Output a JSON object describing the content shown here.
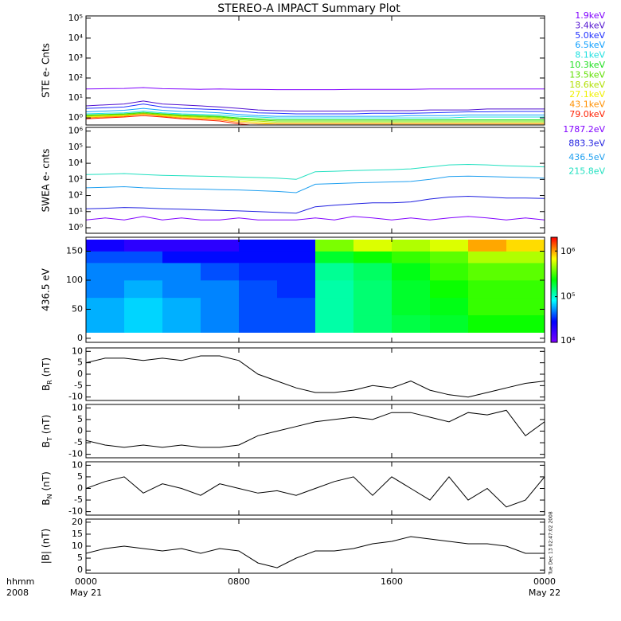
{
  "title": "STEREO-A IMPACT Summary Plot",
  "timestamp": "Tue Dec 13 02:47:02 2008",
  "chart_data": [
    {
      "type": "line",
      "log": true,
      "ylabel": "STE e- Cnts",
      "legend": "right-outside",
      "ylim": [
        0.44,
        130000
      ],
      "yticks": [
        {
          "value": 1,
          "label": "10⁰"
        },
        {
          "value": 10,
          "label": "10¹"
        },
        {
          "value": 100,
          "label": "10²"
        },
        {
          "value": 1000,
          "label": "10³"
        },
        {
          "value": 10000,
          "label": "10⁴"
        },
        {
          "value": 100000,
          "label": "10⁵"
        }
      ],
      "x": [
        0,
        1,
        2,
        3,
        4,
        5,
        6,
        7,
        8,
        9,
        10,
        11,
        12,
        13,
        14,
        15,
        16,
        17,
        18,
        19,
        20,
        21,
        22,
        23,
        24
      ],
      "series": [
        {
          "name": "1.9keV",
          "color": "#8000ff",
          "values": [
            28,
            29,
            30,
            33,
            29,
            28,
            27,
            28,
            27,
            27,
            26,
            26,
            26,
            26,
            27,
            27,
            27,
            27,
            28,
            28,
            28,
            28,
            28,
            28,
            28
          ]
        },
        {
          "name": "3.4keV",
          "color": "#5010d0",
          "values": [
            4,
            4.5,
            5,
            7,
            5,
            4.5,
            4,
            3.5,
            3,
            2.5,
            2.3,
            2.2,
            2.2,
            2.2,
            2.2,
            2.3,
            2.3,
            2.3,
            2.5,
            2.5,
            2.5,
            2.8,
            2.8,
            2.8,
            2.8
          ]
        },
        {
          "name": "5.0keV",
          "color": "#2030ff",
          "values": [
            3,
            3.2,
            3.5,
            5,
            3.5,
            3,
            2.8,
            2.6,
            2.2,
            1.8,
            1.7,
            1.6,
            1.6,
            1.6,
            1.6,
            1.7,
            1.7,
            1.7,
            1.8,
            1.9,
            2,
            2,
            2.1,
            2.1,
            2.1
          ]
        },
        {
          "name": "6.5keV",
          "color": "#10a0ff",
          "values": [
            2,
            2.2,
            2.4,
            3,
            2.4,
            2.1,
            2,
            1.8,
            1.5,
            1.3,
            1.2,
            1.2,
            1.2,
            1.2,
            1.2,
            1.2,
            1.2,
            1.3,
            1.3,
            1.3,
            1.4,
            1.4,
            1.4,
            1.4,
            1.4
          ]
        },
        {
          "name": "8.1keV",
          "color": "#20e0e0",
          "values": [
            1.6,
            1.7,
            1.8,
            2.2,
            1.8,
            1.6,
            1.5,
            1.4,
            1.2,
            1.1,
            1,
            1,
            1,
            1,
            1,
            1,
            1,
            1,
            1,
            1,
            1.1,
            1.1,
            1.1,
            1.1,
            1.1
          ]
        },
        {
          "name": "10.3keV",
          "color": "#20e020",
          "values": [
            1.4,
            1.5,
            1.6,
            1.9,
            1.6,
            1.4,
            1.3,
            1.2,
            1,
            0.9,
            0.8,
            0.8,
            0.8,
            0.8,
            0.8,
            0.8,
            0.8,
            0.8,
            0.8,
            0.8,
            0.8,
            0.8,
            0.8,
            0.8,
            0.8
          ]
        },
        {
          "name": "13.5keV",
          "color": "#60e000",
          "values": [
            1.3,
            1.4,
            1.5,
            1.7,
            1.5,
            1.3,
            1.2,
            1.1,
            0.9,
            0.8,
            0.7,
            0.7,
            0.7,
            0.7,
            0.7,
            0.7,
            0.7,
            0.7,
            0.7,
            0.7,
            0.7,
            0.7,
            0.7,
            0.7,
            0.7
          ]
        },
        {
          "name": "18.6keV",
          "color": "#b0e000",
          "values": [
            1.2,
            1.3,
            1.4,
            1.6,
            1.4,
            1.2,
            1.1,
            1,
            0.8,
            0.7,
            0.6,
            0.6,
            0.6,
            0.6,
            0.6,
            0.6,
            0.6,
            0.6,
            0.6,
            0.6,
            0.6,
            0.6,
            0.6,
            0.6,
            0.6
          ]
        },
        {
          "name": "27.1keV",
          "color": "#f0f000",
          "values": [
            1.1,
            1.2,
            1.3,
            1.5,
            1.3,
            1.1,
            1,
            0.9,
            0.7,
            0.6,
            0.5,
            0.5,
            0.5,
            0.5,
            0.5,
            0.5,
            0.5,
            0.5,
            0.5,
            0.5,
            0.5,
            0.5,
            0.5,
            0.5,
            0.5
          ]
        },
        {
          "name": "43.1keV",
          "color": "#ff9000",
          "values": [
            1,
            1.1,
            1.2,
            1.6,
            1.2,
            1,
            0.9,
            0.8,
            0.6,
            0.5,
            0.5,
            0.5,
            0.5,
            0.5,
            0.5,
            0.5,
            0.5,
            0.5,
            0.5,
            0.5,
            0.5,
            0.5,
            0.5,
            0.5,
            0.5
          ]
        },
        {
          "name": "79.0keV",
          "color": "#ff2000",
          "values": [
            0.9,
            1,
            1.1,
            1.3,
            1.1,
            0.9,
            0.8,
            0.7,
            0.5,
            0.4,
            0.4,
            0.4,
            0.4,
            0.4,
            0.4,
            0.4,
            0.4,
            0.4,
            0.4,
            0.4,
            0.4,
            0.4,
            0.4,
            0.4,
            0.4
          ]
        }
      ]
    },
    {
      "type": "line",
      "log": true,
      "ylabel": "SWEA e- cnts",
      "legend": "right-outside",
      "ylim": [
        0.45,
        1700000
      ],
      "yticks": [
        {
          "value": 1,
          "label": "10⁰"
        },
        {
          "value": 10,
          "label": "10¹"
        },
        {
          "value": 100,
          "label": "10²"
        },
        {
          "value": 1000,
          "label": "10³"
        },
        {
          "value": 10000,
          "label": "10⁴"
        },
        {
          "value": 100000,
          "label": "10⁵"
        },
        {
          "value": 1000000,
          "label": "10⁶"
        }
      ],
      "x": [
        0,
        1,
        2,
        3,
        4,
        5,
        6,
        7,
        8,
        9,
        10,
        11,
        12,
        13,
        14,
        15,
        16,
        17,
        18,
        19,
        20,
        21,
        22,
        23,
        24
      ],
      "series": [
        {
          "name": "1787.2eV",
          "color": "#8000ff",
          "values": [
            3,
            4,
            3,
            5,
            3,
            4,
            3,
            3,
            4,
            3,
            3,
            3,
            4,
            3,
            5,
            4,
            3,
            4,
            3,
            4,
            5,
            4,
            3,
            4,
            3
          ]
        },
        {
          "name": "883.3eV",
          "color": "#2020e0",
          "values": [
            15,
            16,
            18,
            17,
            15,
            14,
            13,
            12,
            11,
            10,
            9,
            8,
            20,
            25,
            30,
            35,
            35,
            40,
            60,
            80,
            90,
            80,
            70,
            70,
            65
          ]
        },
        {
          "name": "436.5eV",
          "color": "#20a0f0",
          "values": [
            300,
            320,
            350,
            300,
            280,
            260,
            250,
            230,
            220,
            200,
            180,
            150,
            500,
            550,
            600,
            650,
            700,
            750,
            1000,
            1500,
            1600,
            1500,
            1400,
            1300,
            1200
          ]
        },
        {
          "name": "215.8eV",
          "color": "#20e0c0",
          "values": [
            2000,
            2100,
            2300,
            2000,
            1800,
            1700,
            1600,
            1500,
            1400,
            1300,
            1200,
            1000,
            3000,
            3200,
            3500,
            3800,
            4000,
            4500,
            6000,
            8000,
            8500,
            8000,
            7000,
            6500,
            6000
          ]
        }
      ]
    },
    {
      "type": "heatmap",
      "ylabel": "436.5 eV",
      "ylim": [
        -7,
        174
      ],
      "yticks": [
        0,
        50,
        100,
        150
      ],
      "x_bins": [
        0,
        2,
        4,
        6,
        8,
        10,
        12,
        14,
        16,
        18,
        20,
        22,
        24
      ],
      "y_bins": [
        10,
        40,
        70,
        100,
        130,
        150,
        170
      ],
      "values": [
        [
          60000,
          70000,
          60000,
          50000,
          40000,
          40000,
          120000,
          150000,
          180000,
          200000,
          250000,
          250000
        ],
        [
          60000,
          70000,
          60000,
          50000,
          40000,
          40000,
          120000,
          150000,
          200000,
          220000,
          300000,
          300000
        ],
        [
          50000,
          60000,
          50000,
          50000,
          40000,
          35000,
          120000,
          150000,
          200000,
          250000,
          300000,
          300000
        ],
        [
          50000,
          50000,
          50000,
          40000,
          35000,
          35000,
          130000,
          160000,
          220000,
          300000,
          350000,
          350000
        ],
        [
          40000,
          40000,
          30000,
          30000,
          30000,
          30000,
          200000,
          250000,
          300000,
          350000,
          500000,
          500000
        ],
        [
          25000,
          20000,
          20000,
          20000,
          30000,
          30000,
          400000,
          600000,
          500000,
          600000,
          1000000,
          800000
        ]
      ],
      "zlim": [
        10000,
        2000000
      ],
      "zticks": [
        {
          "value": 10000,
          "label": "10⁴"
        },
        {
          "value": 100000,
          "label": "10⁵"
        },
        {
          "value": 1000000,
          "label": "10⁶"
        }
      ],
      "colormap": [
        "#8000ff",
        "#0000ff",
        "#00ffff",
        "#00ff00",
        "#ffff00",
        "#ff0000"
      ]
    },
    {
      "type": "line",
      "ylabel": {
        "text": "B",
        "sub": "R",
        "unit": "(nT)"
      },
      "ylim": [
        -11.5,
        11.5
      ],
      "yticks": [
        10,
        5,
        0,
        -5,
        -10
      ],
      "x": [
        0,
        1,
        2,
        3,
        4,
        5,
        6,
        7,
        8,
        9,
        10,
        11,
        12,
        13,
        14,
        15,
        16,
        17,
        18,
        19,
        20,
        21,
        22,
        23,
        24
      ],
      "series": [
        {
          "color": "#000000",
          "values": [
            5,
            7,
            7,
            6,
            7,
            6,
            8,
            8,
            6,
            0,
            -3,
            -6,
            -8,
            -8,
            -7,
            -5,
            -6,
            -3,
            -7,
            -9,
            -10,
            -8,
            -6,
            -4,
            -3
          ]
        }
      ]
    },
    {
      "type": "line",
      "ylabel": {
        "text": "B",
        "sub": "T",
        "unit": "(nT)"
      },
      "ylim": [
        -11.5,
        11.5
      ],
      "yticks": [
        10,
        5,
        0,
        -5,
        -10
      ],
      "x": [
        0,
        1,
        2,
        3,
        4,
        5,
        6,
        7,
        8,
        9,
        10,
        11,
        12,
        13,
        14,
        15,
        16,
        17,
        18,
        19,
        20,
        21,
        22,
        23,
        24
      ],
      "series": [
        {
          "color": "#000000",
          "values": [
            -4,
            -6,
            -7,
            -6,
            -7,
            -6,
            -7,
            -7,
            -6,
            -2,
            0,
            2,
            4,
            5,
            6,
            5,
            8,
            8,
            6,
            4,
            8,
            7,
            9,
            -2,
            4
          ]
        }
      ]
    },
    {
      "type": "line",
      "ylabel": {
        "text": "B",
        "sub": "N",
        "unit": "(nT)"
      },
      "ylim": [
        -11.5,
        11.5
      ],
      "yticks": [
        10,
        5,
        0,
        -5,
        -10
      ],
      "x": [
        0,
        1,
        2,
        3,
        4,
        5,
        6,
        7,
        8,
        9,
        10,
        11,
        12,
        13,
        14,
        15,
        16,
        17,
        18,
        19,
        20,
        21,
        22,
        23,
        24
      ],
      "series": [
        {
          "color": "#000000",
          "values": [
            0,
            3,
            5,
            -2,
            2,
            0,
            -3,
            2,
            0,
            -2,
            -1,
            -3,
            0,
            3,
            5,
            -3,
            5,
            0,
            -5,
            5,
            -5,
            0,
            -8,
            -5,
            5
          ]
        }
      ]
    },
    {
      "type": "line",
      "ylabel": "|B| (nT)",
      "ylim": [
        -1.3,
        21.3
      ],
      "yticks": [
        20,
        15,
        10,
        5,
        0
      ],
      "x": [
        0,
        1,
        2,
        3,
        4,
        5,
        6,
        7,
        8,
        9,
        10,
        11,
        12,
        13,
        14,
        15,
        16,
        17,
        18,
        19,
        20,
        21,
        22,
        23,
        24
      ],
      "series": [
        {
          "color": "#000000",
          "values": [
            7,
            9,
            10,
            9,
            8,
            9,
            7,
            9,
            8,
            3,
            1,
            5,
            8,
            8,
            9,
            11,
            12,
            14,
            13,
            12,
            11,
            11,
            10,
            7,
            7
          ]
        }
      ],
      "xlim": [
        0,
        24
      ],
      "xticks": [
        {
          "value": 0,
          "label": "0000"
        },
        {
          "value": 8,
          "label": "0800"
        },
        {
          "value": 16,
          "label": "1600"
        },
        {
          "value": 24,
          "label": "0000"
        }
      ],
      "x_dates": [
        {
          "value": 0,
          "label": "May 21"
        },
        {
          "value": 24,
          "label": "May 22"
        }
      ],
      "xlabel": [
        "hhmm",
        "2008"
      ]
    }
  ]
}
